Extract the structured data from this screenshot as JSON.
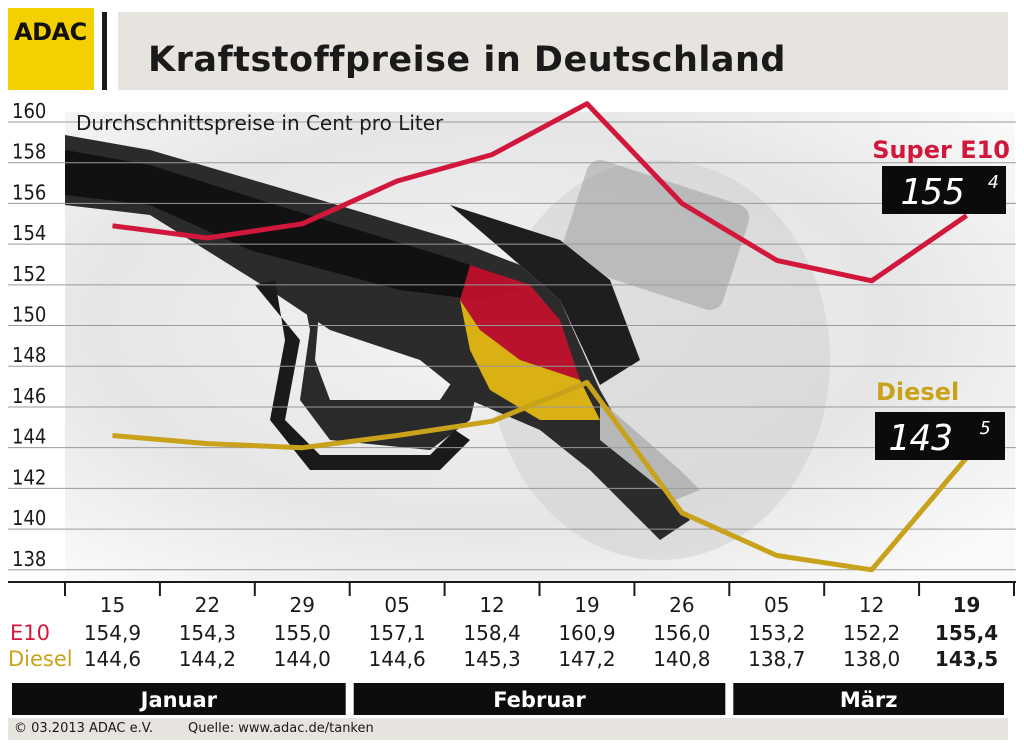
{
  "header": {
    "logo_text": "ADAC",
    "title": "Kraftstoffpreise in Deutschland",
    "logo_color": "#f5d000"
  },
  "chart_data": {
    "type": "line",
    "title": "Kraftstoffpreise in Deutschland",
    "subtitle": "Durchschnittspreise in Cent pro Liter",
    "ylim": [
      137.4,
      160
    ],
    "y_ticks": [
      160,
      158,
      156,
      154,
      152,
      150,
      148,
      146,
      144,
      142,
      140,
      138
    ],
    "grid": true,
    "x": [
      "15",
      "22",
      "29",
      "05",
      "12",
      "19",
      "26",
      "05",
      "12",
      "19"
    ],
    "months": [
      {
        "label": "Januar",
        "from": 0,
        "to": 2
      },
      {
        "label": "Februar",
        "from": 3,
        "to": 6
      },
      {
        "label": "März",
        "from": 7,
        "to": 9
      }
    ],
    "series": [
      {
        "name": "E10",
        "legend": "Super E10",
        "color": "#d2173d",
        "values": [
          154.9,
          154.3,
          155.0,
          157.1,
          158.4,
          160.9,
          156.0,
          153.2,
          152.2,
          155.4
        ],
        "display": [
          "154,9",
          "154,3",
          "155,0",
          "157,1",
          "158,4",
          "160,9",
          "156,0",
          "153,2",
          "152,2",
          "155,4"
        ],
        "current_display": {
          "main": "155",
          "sup": "4"
        }
      },
      {
        "name": "Diesel",
        "legend": "Diesel",
        "color": "#c9a21b",
        "values": [
          144.6,
          144.2,
          144.0,
          144.6,
          145.3,
          147.2,
          140.8,
          138.7,
          138.0,
          143.5
        ],
        "display": [
          "144,6",
          "144,2",
          "144,0",
          "144,6",
          "145,3",
          "147,2",
          "140,8",
          "138,7",
          "138,0",
          "143,5"
        ],
        "current_display": {
          "main": "143",
          "sup": "5"
        }
      }
    ]
  },
  "footer": {
    "copyright": "© 03.2013  ADAC e.V.",
    "source": "Quelle: www.adac.de/tanken"
  }
}
